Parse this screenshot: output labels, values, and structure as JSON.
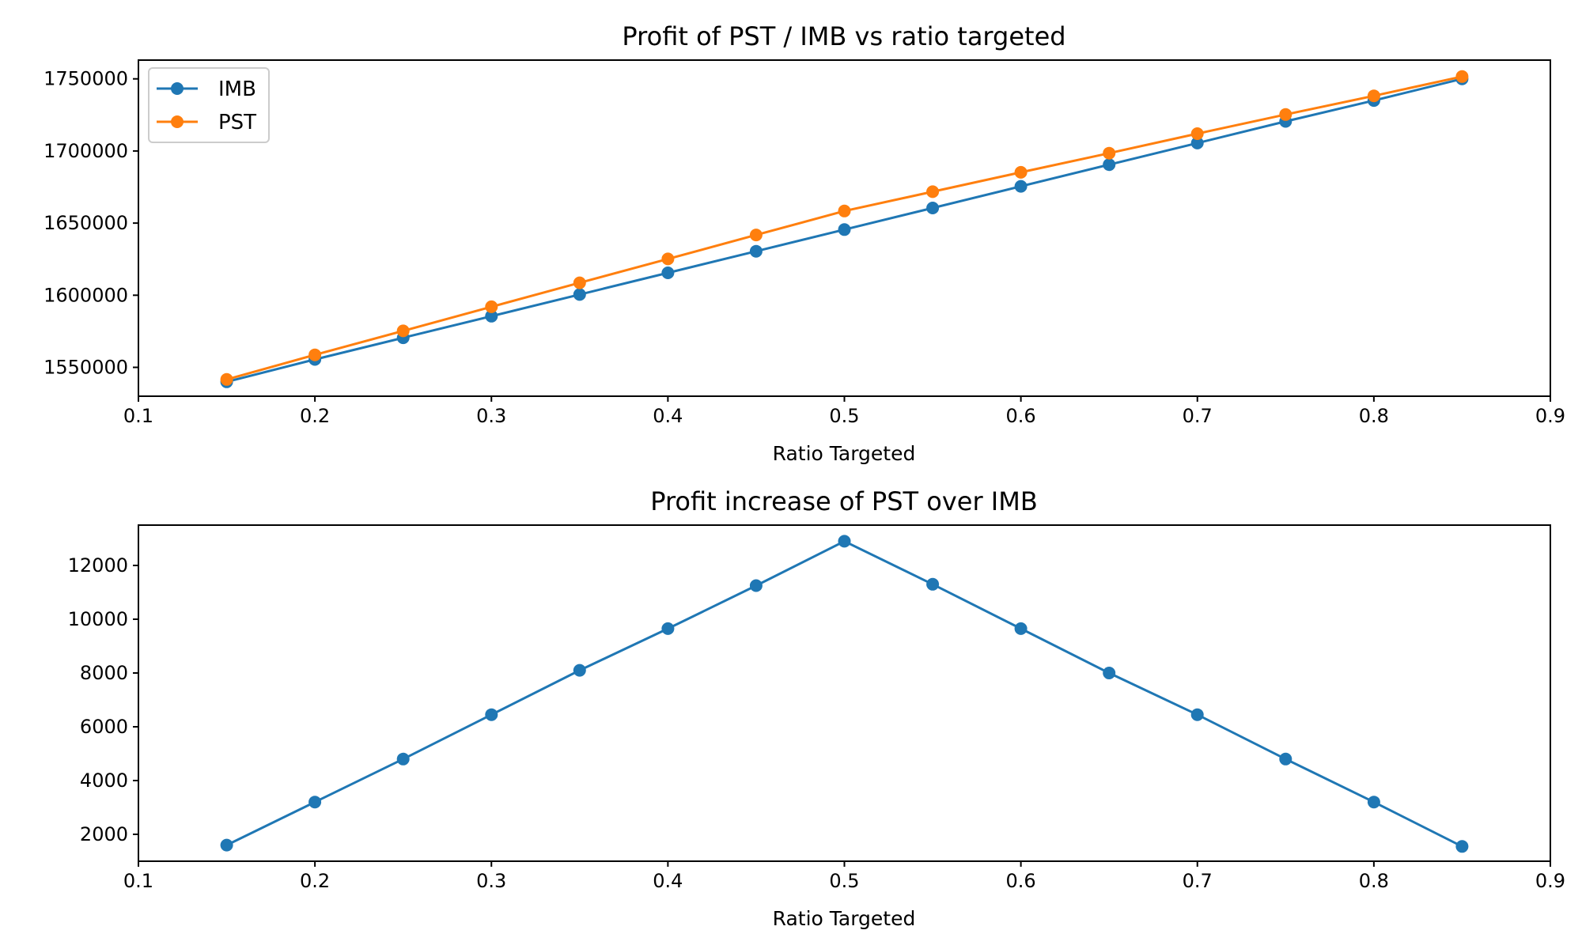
{
  "chart_data": [
    {
      "type": "line",
      "title": "Profit of PST / IMB vs ratio targeted",
      "xlabel": "Ratio Targeted",
      "ylabel": "",
      "xlim": [
        0.1,
        0.9
      ],
      "ylim": [
        1530000,
        1763000
      ],
      "xticks": [
        0.1,
        0.2,
        0.3,
        0.4,
        0.5,
        0.6,
        0.7,
        0.8,
        0.9
      ],
      "yticks": [
        1550000,
        1600000,
        1650000,
        1700000,
        1750000
      ],
      "grid": false,
      "legend": "top-left",
      "x": [
        0.15,
        0.2,
        0.25,
        0.3,
        0.35,
        0.4,
        0.45,
        0.5,
        0.55,
        0.6,
        0.65,
        0.7,
        0.75,
        0.8,
        0.85
      ],
      "series": [
        {
          "name": "IMB",
          "color": "#1f77b4",
          "values": [
            1540000,
            1555500,
            1570500,
            1585500,
            1600500,
            1615500,
            1630500,
            1645500,
            1660500,
            1675500,
            1690500,
            1705500,
            1720500,
            1735000,
            1750000
          ]
        },
        {
          "name": "PST",
          "color": "#ff7f0e",
          "values": [
            1541600,
            1558700,
            1575300,
            1592000,
            1608600,
            1625200,
            1641800,
            1658400,
            1671800,
            1685200,
            1698500,
            1712000,
            1725300,
            1738200,
            1751600
          ]
        }
      ]
    },
    {
      "type": "line",
      "title": "Profit increase of PST over IMB",
      "xlabel": "Ratio Targeted",
      "ylabel": "",
      "xlim": [
        0.1,
        0.9
      ],
      "ylim": [
        1000,
        13500
      ],
      "xticks": [
        0.1,
        0.2,
        0.3,
        0.4,
        0.5,
        0.6,
        0.7,
        0.8,
        0.9
      ],
      "yticks": [
        2000,
        4000,
        6000,
        8000,
        10000,
        12000
      ],
      "grid": false,
      "x": [
        0.15,
        0.2,
        0.25,
        0.3,
        0.35,
        0.4,
        0.45,
        0.5,
        0.55,
        0.6,
        0.65,
        0.7,
        0.75,
        0.8,
        0.85
      ],
      "series": [
        {
          "color": "#1f77b4",
          "values": [
            1600,
            3200,
            4800,
            6450,
            8100,
            9650,
            11250,
            12900,
            11300,
            9650,
            8000,
            6450,
            4800,
            3200,
            1550
          ]
        }
      ]
    }
  ]
}
